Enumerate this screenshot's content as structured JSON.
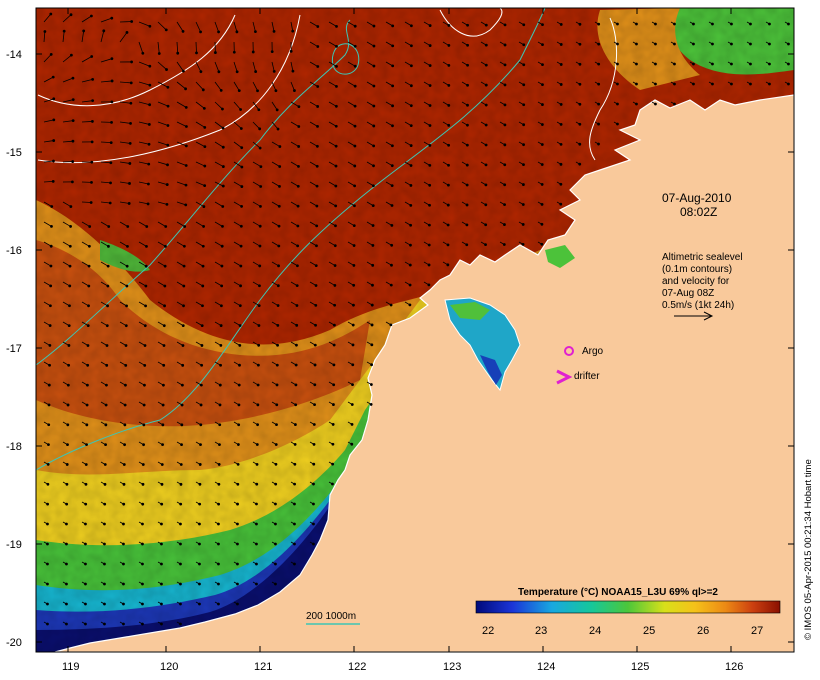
{
  "map": {
    "date_line1": "07-Aug-2010",
    "date_line2": "08:02Z",
    "legend_lines": [
      "Altimetric sealevel",
      "(0.1m contours)",
      "and velocity for",
      "07-Aug 08Z",
      "0.5m/s (1kt 24h)"
    ],
    "argo_label": "Argo",
    "drifter_label": "drifter",
    "isobath_label": "200  1000m",
    "colorbar_title": "Temperature (°C) NOAA15_L3U 69% ql>=2",
    "colorbar_ticks": [
      "22",
      "23",
      "24",
      "25",
      "26",
      "27"
    ],
    "credit": "© IMOS 05-Apr-2015 00:21:34 Hobart time",
    "lon_ticks": [
      "119",
      "120",
      "121",
      "122",
      "123",
      "124",
      "125",
      "126"
    ],
    "lat_ticks": [
      "-14",
      "-15",
      "-16",
      "-17",
      "-18",
      "-19",
      "-20"
    ],
    "colors": {
      "land": "#f9c99b",
      "very_warm": "#a01a00",
      "warm": "#cc4a10",
      "orange": "#e8921a",
      "yellow": "#f2d21a",
      "green": "#46c23a",
      "cyan": "#16b7cf",
      "blue": "#1b35b8",
      "navy": "#0a0f6e",
      "isobath": "#3ec6b4",
      "argo": "#e020d0",
      "drifter": "#e020d0"
    }
  }
}
